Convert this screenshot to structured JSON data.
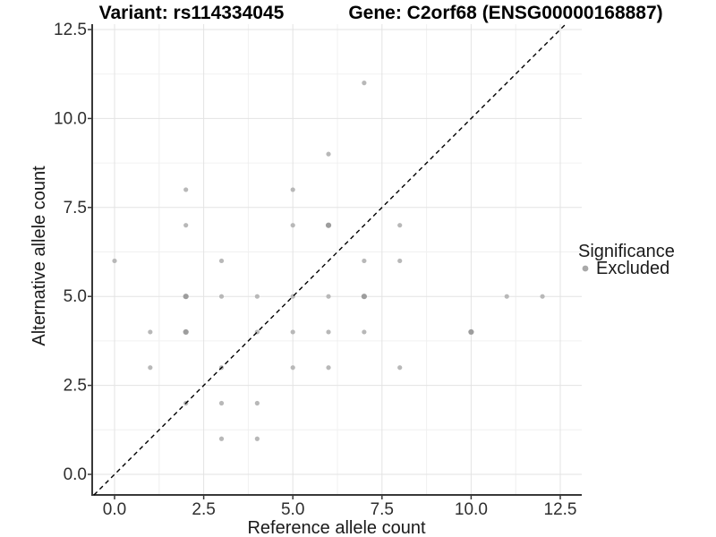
{
  "chart_data": {
    "type": "scatter",
    "titles": {
      "left": "Variant: rs114334045",
      "right": "Gene: C2orf68 (ENSG00000168887)"
    },
    "xlabel": "Reference allele count",
    "ylabel": "Alternative allele count",
    "xlim": [
      0,
      12.5
    ],
    "ylim": [
      0,
      12.5
    ],
    "x_tick_labels": [
      "0.0",
      "2.5",
      "5.0",
      "7.5",
      "10.0",
      "12.5"
    ],
    "y_tick_labels": [
      "0.0",
      "2.5",
      "5.0",
      "7.5",
      "10.0",
      "12.5"
    ],
    "major_tick_values": [
      0,
      2.5,
      5,
      7.5,
      10,
      12.5
    ],
    "minor_tick_values": [
      1.25,
      3.75,
      6.25,
      8.75,
      11.25
    ],
    "grid": "on",
    "identity_line": {
      "shown": true,
      "style": "dashed",
      "equation": "y = x"
    },
    "legend": {
      "position": "right",
      "title": "Significance",
      "items": [
        {
          "label": "Excluded",
          "color": "#a9a9a9"
        }
      ]
    },
    "points_format": "[reference_allele_count, alternative_allele_count, overlap_weight]",
    "points": [
      [
        0,
        6,
        1
      ],
      [
        1,
        3,
        1
      ],
      [
        1,
        4,
        1
      ],
      [
        2,
        2,
        1
      ],
      [
        2,
        4,
        2
      ],
      [
        2,
        5,
        2
      ],
      [
        2,
        7,
        1
      ],
      [
        2,
        8,
        1
      ],
      [
        3,
        1,
        1
      ],
      [
        3,
        2,
        1
      ],
      [
        3,
        3,
        1
      ],
      [
        3,
        5,
        1
      ],
      [
        3,
        6,
        1
      ],
      [
        4,
        1,
        1
      ],
      [
        4,
        2,
        1
      ],
      [
        4,
        4,
        1
      ],
      [
        4,
        5,
        1
      ],
      [
        5,
        3,
        1
      ],
      [
        5,
        4,
        1
      ],
      [
        5,
        5,
        1
      ],
      [
        5,
        7,
        1
      ],
      [
        5,
        8,
        1
      ],
      [
        6,
        3,
        1
      ],
      [
        6,
        4,
        1
      ],
      [
        6,
        5,
        1
      ],
      [
        6,
        7,
        2
      ],
      [
        6,
        9,
        1
      ],
      [
        7,
        4,
        1
      ],
      [
        7,
        5,
        2
      ],
      [
        7,
        6,
        1
      ],
      [
        7,
        11,
        1
      ],
      [
        8,
        3,
        1
      ],
      [
        8,
        6,
        1
      ],
      [
        8,
        7,
        1
      ],
      [
        10,
        4,
        2
      ],
      [
        11,
        5,
        1
      ],
      [
        12,
        5,
        1
      ]
    ],
    "colors": {
      "background": "#ffffff",
      "point": "#b8b8b8",
      "point_overlap": "#9d9d9d",
      "grid_major": "#e3e3e3",
      "grid_minor": "#f0f0f0",
      "axis_line": "#383838",
      "tick_mark": "#383838",
      "identity_line": "#000000"
    }
  }
}
